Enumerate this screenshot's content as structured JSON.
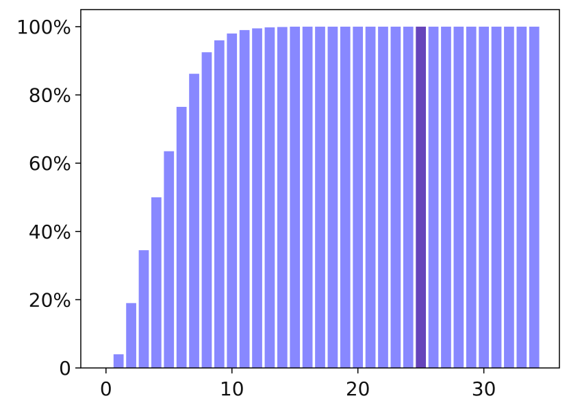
{
  "chart_data": {
    "type": "bar",
    "title": "",
    "xlabel": "",
    "ylabel": "",
    "x": [
      0,
      1,
      2,
      3,
      4,
      5,
      6,
      7,
      8,
      9,
      10,
      11,
      12,
      13,
      14,
      15,
      16,
      17,
      18,
      19,
      20,
      21,
      22,
      23,
      24,
      25,
      26,
      27,
      28,
      29,
      30,
      31,
      32,
      33,
      34
    ],
    "values": [
      0.0,
      0.04,
      0.19,
      0.345,
      0.5,
      0.635,
      0.765,
      0.862,
      0.925,
      0.96,
      0.98,
      0.99,
      0.995,
      0.998,
      0.999,
      1.0,
      1.0,
      1.0,
      1.0,
      1.0,
      1.0,
      1.0,
      1.0,
      1.0,
      1.0,
      1.0,
      1.0,
      1.0,
      1.0,
      1.0,
      1.0,
      1.0,
      1.0,
      1.0,
      1.0
    ],
    "highlight_x": 25,
    "xlim": [
      -2,
      36
    ],
    "ylim": [
      0,
      1.05
    ],
    "x_ticks": [
      0,
      10,
      20,
      30
    ],
    "x_tick_labels": [
      "0",
      "10",
      "20",
      "30"
    ],
    "y_ticks": [
      0,
      0.2,
      0.4,
      0.6,
      0.8,
      1.0
    ],
    "y_tick_labels": [
      "0",
      "20%",
      "40%",
      "60%",
      "80%",
      "100%"
    ],
    "grid": false,
    "legend": "none",
    "colors": {
      "bar": "#8888ff",
      "highlight": "#6644bb",
      "axis": "#000000"
    }
  }
}
